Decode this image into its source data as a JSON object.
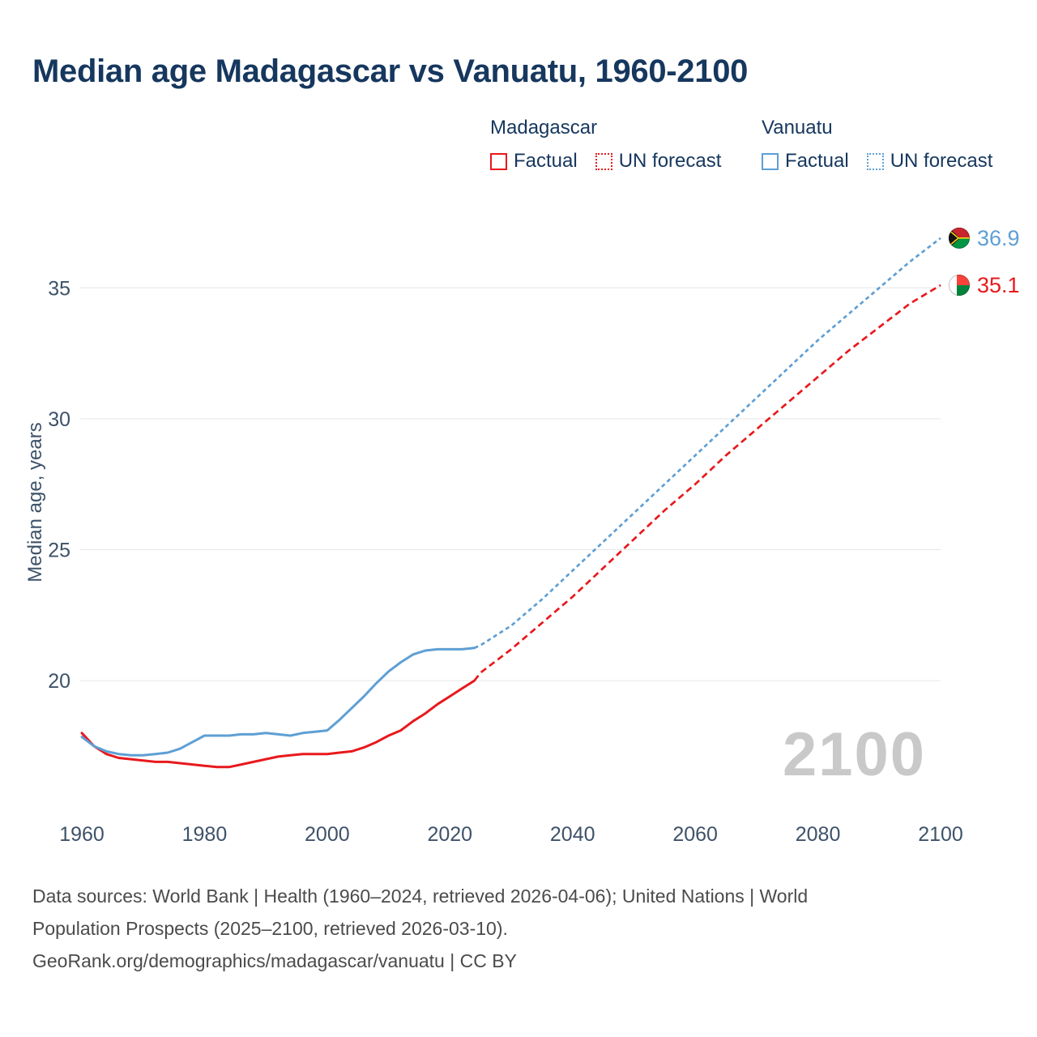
{
  "title": "Median age Madagascar vs Vanuatu, 1960-2100",
  "colors": {
    "title": "#16375e",
    "axis_text": "#3e5269",
    "grid": "#e7e7e7",
    "footer_text": "#4b4b4b",
    "watermark": "#c9c9c9",
    "madagascar": "#e8191d",
    "vanuatu": "#5e9fd4"
  },
  "legend": {
    "groups": [
      {
        "country": "Madagascar",
        "color": "#e8191d",
        "items": [
          {
            "label": "Factual",
            "style": "solid"
          },
          {
            "label": "UN forecast",
            "style": "dotted"
          }
        ]
      },
      {
        "country": "Vanuatu",
        "color": "#5e9fd4",
        "items": [
          {
            "label": "Factual",
            "style": "solid"
          },
          {
            "label": "UN forecast",
            "style": "dotted"
          }
        ]
      }
    ]
  },
  "chart_data": {
    "type": "line",
    "title": "Median age Madagascar vs Vanuatu, 1960-2100",
    "xlabel": "",
    "ylabel": "Median age, years",
    "xlim": [
      1960,
      2100
    ],
    "ylim": [
      14.9,
      37.7
    ],
    "xticks": [
      1960,
      1980,
      2000,
      2020,
      2040,
      2060,
      2080,
      2100
    ],
    "yticks": [
      20,
      25,
      30,
      35
    ],
    "grid": "horizontal",
    "legend_position": "top",
    "watermark": "2100",
    "series": [
      {
        "name": "Madagascar",
        "color": "#e8191d",
        "dash": "8 5",
        "flag": "madagascar",
        "end_label": "35.1",
        "end_value": 35.1,
        "factual": [
          [
            1960,
            18.0
          ],
          [
            1962,
            17.5
          ],
          [
            1964,
            17.2
          ],
          [
            1966,
            17.05
          ],
          [
            1968,
            17.0
          ],
          [
            1970,
            16.95
          ],
          [
            1972,
            16.9
          ],
          [
            1974,
            16.9
          ],
          [
            1976,
            16.85
          ],
          [
            1978,
            16.8
          ],
          [
            1980,
            16.75
          ],
          [
            1982,
            16.7
          ],
          [
            1984,
            16.7
          ],
          [
            1986,
            16.8
          ],
          [
            1988,
            16.9
          ],
          [
            1990,
            17.0
          ],
          [
            1992,
            17.1
          ],
          [
            1994,
            17.15
          ],
          [
            1996,
            17.2
          ],
          [
            1998,
            17.2
          ],
          [
            2000,
            17.2
          ],
          [
            2002,
            17.25
          ],
          [
            2004,
            17.3
          ],
          [
            2006,
            17.45
          ],
          [
            2008,
            17.65
          ],
          [
            2010,
            17.9
          ],
          [
            2012,
            18.1
          ],
          [
            2014,
            18.45
          ],
          [
            2016,
            18.75
          ],
          [
            2018,
            19.1
          ],
          [
            2020,
            19.4
          ],
          [
            2022,
            19.7
          ],
          [
            2024,
            20.0
          ]
        ],
        "forecast": [
          [
            2024,
            20.0
          ],
          [
            2025,
            20.3
          ],
          [
            2030,
            21.2
          ],
          [
            2035,
            22.2
          ],
          [
            2040,
            23.2
          ],
          [
            2045,
            24.3
          ],
          [
            2050,
            25.4
          ],
          [
            2055,
            26.5
          ],
          [
            2060,
            27.5
          ],
          [
            2065,
            28.6
          ],
          [
            2070,
            29.6
          ],
          [
            2075,
            30.6
          ],
          [
            2080,
            31.6
          ],
          [
            2085,
            32.6
          ],
          [
            2090,
            33.5
          ],
          [
            2095,
            34.4
          ],
          [
            2100,
            35.1
          ]
        ]
      },
      {
        "name": "Vanuatu",
        "color": "#5e9fd4",
        "dash": "5 4",
        "flag": "vanuatu",
        "end_label": "36.9",
        "end_value": 36.9,
        "factual": [
          [
            1960,
            17.85
          ],
          [
            1962,
            17.5
          ],
          [
            1964,
            17.3
          ],
          [
            1966,
            17.2
          ],
          [
            1968,
            17.15
          ],
          [
            1970,
            17.15
          ],
          [
            1972,
            17.2
          ],
          [
            1974,
            17.25
          ],
          [
            1976,
            17.4
          ],
          [
            1978,
            17.65
          ],
          [
            1980,
            17.9
          ],
          [
            1982,
            17.9
          ],
          [
            1984,
            17.9
          ],
          [
            1986,
            17.95
          ],
          [
            1988,
            17.95
          ],
          [
            1990,
            18.0
          ],
          [
            1992,
            17.95
          ],
          [
            1994,
            17.9
          ],
          [
            1996,
            18.0
          ],
          [
            1998,
            18.05
          ],
          [
            2000,
            18.1
          ],
          [
            2002,
            18.5
          ],
          [
            2004,
            18.95
          ],
          [
            2006,
            19.4
          ],
          [
            2008,
            19.9
          ],
          [
            2010,
            20.35
          ],
          [
            2012,
            20.7
          ],
          [
            2014,
            21.0
          ],
          [
            2016,
            21.15
          ],
          [
            2018,
            21.2
          ],
          [
            2020,
            21.2
          ],
          [
            2022,
            21.2
          ],
          [
            2024,
            21.25
          ]
        ],
        "forecast": [
          [
            2024,
            21.25
          ],
          [
            2025,
            21.35
          ],
          [
            2030,
            22.1
          ],
          [
            2035,
            23.1
          ],
          [
            2040,
            24.2
          ],
          [
            2045,
            25.3
          ],
          [
            2050,
            26.4
          ],
          [
            2055,
            27.5
          ],
          [
            2060,
            28.6
          ],
          [
            2065,
            29.7
          ],
          [
            2070,
            30.8
          ],
          [
            2075,
            31.9
          ],
          [
            2080,
            33.0
          ],
          [
            2085,
            34.0
          ],
          [
            2090,
            35.0
          ],
          [
            2095,
            36.0
          ],
          [
            2100,
            36.9
          ]
        ]
      }
    ]
  },
  "footer": {
    "lines": [
      "Data sources: World Bank | Health (1960–2024, retrieved 2026-04-06); United Nations | World",
      "Population Prospects (2025–2100, retrieved 2026-03-10).",
      "GeoRank.org/demographics/madagascar/vanuatu | CC BY"
    ]
  }
}
